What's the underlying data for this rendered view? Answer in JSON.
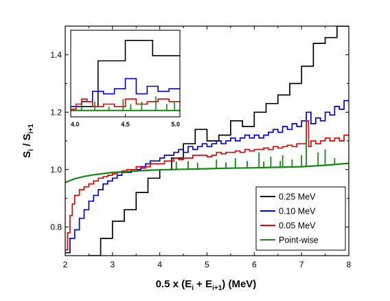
{
  "chart_data": {
    "type": "line",
    "xlabel": {
      "main": "0.5 x (E",
      "sub1": "i",
      "mid": " + E",
      "sub2": "i+1",
      "tail": ") (MeV)"
    },
    "ylabel": {
      "main": "S",
      "sub1": "i",
      "mid": " / S",
      "sub2": "i+1"
    },
    "xlim": [
      2,
      8
    ],
    "ylim": [
      0.7,
      1.5
    ],
    "xticks": [
      2,
      3,
      4,
      5,
      6,
      7,
      8
    ],
    "yticks": [
      0.8,
      1.0,
      1.2,
      1.4
    ],
    "ytick_labels": [
      "0.8",
      "1.0",
      "1.2",
      "1.4"
    ],
    "legend_position": "bottom-right",
    "series": [
      {
        "name": "0.25 MeV",
        "color": "#000000",
        "style": "step",
        "x": [
          2.0,
          2.25,
          2.5,
          2.75,
          3.0,
          3.25,
          3.5,
          3.75,
          4.0,
          4.25,
          4.5,
          4.75,
          5.0,
          5.25,
          5.5,
          5.75,
          6.0,
          6.25,
          6.5,
          6.75,
          7.0,
          7.25,
          7.5,
          7.75,
          8.0
        ],
        "y": [
          0.58,
          0.64,
          0.7,
          0.76,
          0.82,
          0.86,
          0.92,
          0.97,
          1.0,
          1.04,
          1.09,
          1.14,
          1.1,
          1.12,
          1.17,
          1.15,
          1.2,
          1.23,
          1.26,
          1.3,
          1.36,
          1.44,
          1.46,
          1.5,
          1.5
        ]
      },
      {
        "name": "0.10 MeV",
        "color": "#0000dd",
        "style": "step",
        "x": [
          2.0,
          2.1,
          2.2,
          2.3,
          2.4,
          2.5,
          2.6,
          2.7,
          2.8,
          2.9,
          3.0,
          3.1,
          3.2,
          3.3,
          3.4,
          3.5,
          3.6,
          3.7,
          3.8,
          3.9,
          4.0,
          4.1,
          4.2,
          4.3,
          4.4,
          4.5,
          4.6,
          4.7,
          4.8,
          4.9,
          5.0,
          5.1,
          5.2,
          5.3,
          5.4,
          5.5,
          5.6,
          5.7,
          5.8,
          5.9,
          6.0,
          6.1,
          6.2,
          6.3,
          6.4,
          6.5,
          6.6,
          6.7,
          6.8,
          6.9,
          7.0,
          7.1,
          7.2,
          7.3,
          7.4,
          7.5,
          7.6,
          7.7,
          7.8,
          7.9,
          8.0
        ],
        "y": [
          0.71,
          0.76,
          0.79,
          0.83,
          0.86,
          0.89,
          0.91,
          0.93,
          0.95,
          0.96,
          0.97,
          0.98,
          0.99,
          0.99,
          1.0,
          1.0,
          1.01,
          1.02,
          1.03,
          1.03,
          1.04,
          1.05,
          1.05,
          1.06,
          1.07,
          1.06,
          1.08,
          1.07,
          1.08,
          1.09,
          1.08,
          1.09,
          1.1,
          1.09,
          1.1,
          1.11,
          1.1,
          1.11,
          1.12,
          1.11,
          1.12,
          1.11,
          1.12,
          1.13,
          1.14,
          1.13,
          1.15,
          1.14,
          1.16,
          1.15,
          1.17,
          1.2,
          1.16,
          1.18,
          1.17,
          1.2,
          1.19,
          1.22,
          1.21,
          1.24,
          1.24
        ]
      },
      {
        "name": "0.05 MeV",
        "color": "#ee0000",
        "style": "step",
        "x": [
          2.0,
          2.05,
          2.1,
          2.15,
          2.2,
          2.3,
          2.4,
          2.5,
          2.6,
          2.7,
          2.8,
          2.9,
          3.0,
          3.1,
          3.2,
          3.3,
          3.4,
          3.5,
          3.6,
          3.7,
          3.8,
          3.9,
          4.0,
          4.1,
          4.2,
          4.3,
          4.4,
          4.5,
          4.6,
          4.7,
          4.8,
          4.9,
          5.0,
          5.1,
          5.2,
          5.3,
          5.4,
          5.5,
          5.6,
          5.7,
          5.8,
          5.9,
          6.0,
          6.1,
          6.2,
          6.3,
          6.4,
          6.5,
          6.6,
          6.7,
          6.8,
          6.9,
          7.0,
          7.1,
          7.15,
          7.2,
          7.3,
          7.4,
          7.5,
          7.6,
          7.7,
          7.8,
          7.9,
          8.0
        ],
        "y": [
          0.72,
          0.78,
          0.84,
          0.88,
          0.91,
          0.93,
          0.94,
          0.95,
          0.96,
          0.97,
          0.975,
          0.98,
          0.985,
          0.99,
          0.995,
          1.0,
          1.0,
          1.01,
          1.005,
          1.01,
          1.02,
          1.02,
          1.02,
          1.03,
          1.03,
          1.04,
          1.035,
          1.04,
          1.04,
          1.05,
          1.05,
          1.05,
          1.045,
          1.05,
          1.06,
          1.055,
          1.06,
          1.06,
          1.065,
          1.06,
          1.07,
          1.065,
          1.07,
          1.07,
          1.075,
          1.07,
          1.08,
          1.075,
          1.08,
          1.085,
          1.08,
          1.09,
          1.09,
          1.17,
          1.08,
          1.1,
          1.09,
          1.1,
          1.11,
          1.1,
          1.11,
          1.1,
          1.12,
          1.12
        ]
      },
      {
        "name": "Point-wise",
        "color": "#118811",
        "style": "line",
        "x": [
          2.0,
          2.2,
          2.4,
          2.6,
          2.8,
          3.0,
          3.2,
          3.4,
          3.6,
          3.8,
          4.0,
          4.5,
          5.0,
          5.5,
          6.0,
          6.5,
          7.0,
          7.5,
          8.0
        ],
        "y": [
          0.955,
          0.968,
          0.976,
          0.982,
          0.986,
          0.99,
          0.992,
          0.994,
          0.996,
          0.998,
          0.999,
          1.001,
          1.003,
          1.005,
          1.006,
          1.008,
          1.01,
          1.015,
          1.022
        ],
        "spikes": [
          {
            "x": 4.35,
            "y": 1.028
          },
          {
            "x": 4.6,
            "y": 1.03
          },
          {
            "x": 4.8,
            "y": 1.024
          },
          {
            "x": 5.2,
            "y": 1.035
          },
          {
            "x": 5.4,
            "y": 1.025
          },
          {
            "x": 5.6,
            "y": 1.04
          },
          {
            "x": 5.85,
            "y": 1.03
          },
          {
            "x": 6.1,
            "y": 1.06
          },
          {
            "x": 6.2,
            "y": 1.028
          },
          {
            "x": 6.35,
            "y": 1.045
          },
          {
            "x": 6.55,
            "y": 1.03
          },
          {
            "x": 6.6,
            "y": 1.05
          },
          {
            "x": 6.8,
            "y": 1.035
          },
          {
            "x": 7.0,
            "y": 1.05
          },
          {
            "x": 7.1,
            "y": 1.11
          },
          {
            "x": 7.35,
            "y": 1.06
          },
          {
            "x": 7.5,
            "y": 1.07
          },
          {
            "x": 7.7,
            "y": 1.04
          }
        ]
      }
    ],
    "inset": {
      "xlim": [
        4.0,
        5.0
      ],
      "ylim": [
        1.16,
        1.5
      ],
      "xticks": [
        4.0,
        4.5,
        5.0
      ],
      "xtick_labels": [
        "4.0",
        "4.5",
        "5.0"
      ]
    }
  }
}
